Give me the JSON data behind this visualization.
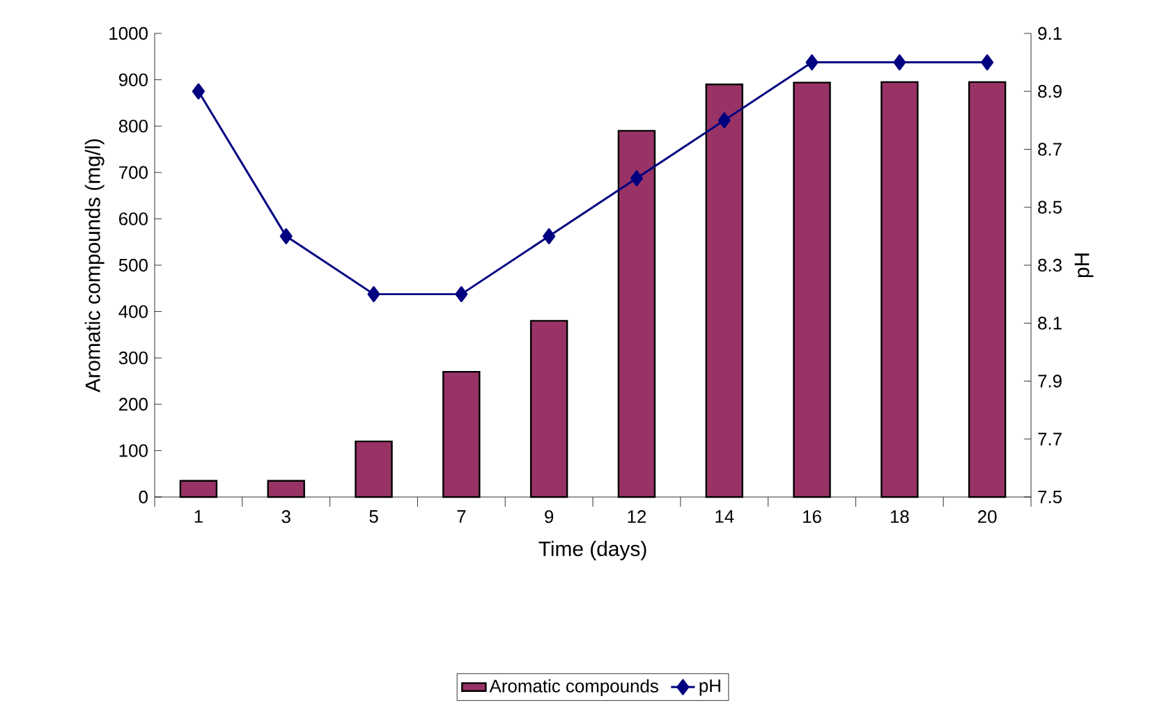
{
  "chart_data": {
    "type": "bar",
    "categories": [
      "1",
      "3",
      "5",
      "7",
      "9",
      "12",
      "14",
      "16",
      "18",
      "20"
    ],
    "xlabel": "Time (days)",
    "ylabel": "Aromatic compounds (mg/l)",
    "y2label": "pH",
    "ylim": [
      0,
      1000
    ],
    "yticks": [
      0,
      100,
      200,
      300,
      400,
      500,
      600,
      700,
      800,
      900,
      1000
    ],
    "y2lim": [
      7.5,
      9.1
    ],
    "y2ticks": [
      7.5,
      7.7,
      7.9,
      8.1,
      8.3,
      8.5,
      8.7,
      8.9,
      9.1
    ],
    "legend": "bottom",
    "marker": "diamond",
    "series": [
      {
        "name": "Aromatic compounds",
        "color": "#993366",
        "values": [
          35,
          35,
          120,
          270,
          380,
          790,
          890,
          894,
          895,
          895
        ]
      },
      {
        "name": "pH",
        "color": "#000080",
        "type": "line",
        "axis": "y2",
        "values": [
          8.9,
          8.4,
          8.2,
          8.2,
          8.4,
          8.6,
          8.8,
          9.0,
          9.0,
          9.0
        ]
      }
    ]
  }
}
